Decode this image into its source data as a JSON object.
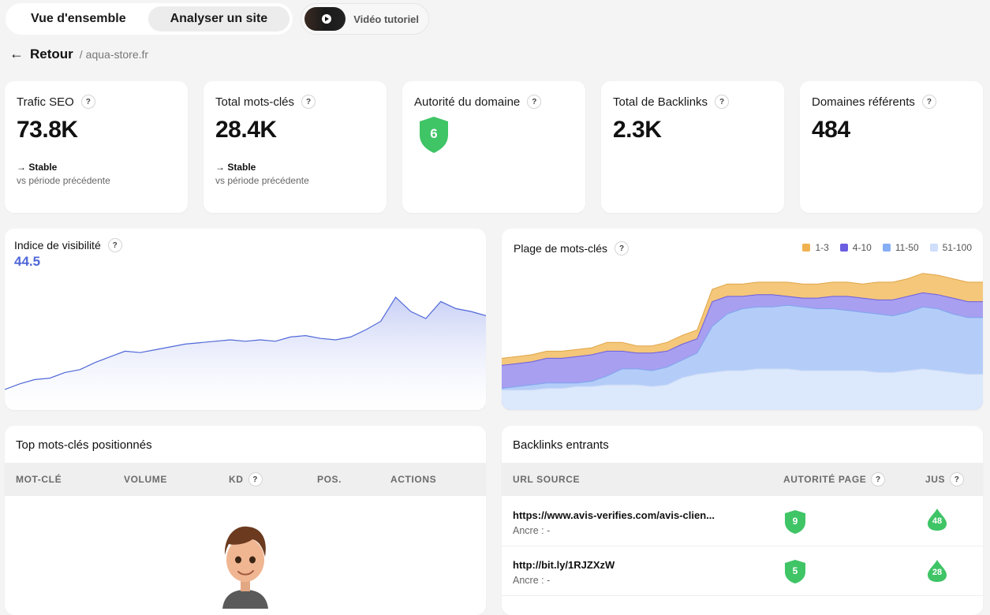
{
  "tabs": {
    "overview": "Vue d'ensemble",
    "analyze": "Analyser un site",
    "video": "Vidéo tutoriel"
  },
  "breadcrumb": {
    "back": "Retour",
    "separator": "/",
    "site": "aqua-store.fr"
  },
  "kpis": {
    "traffic": {
      "title": "Trafic SEO",
      "value": "73.8K",
      "trend": "→ Stable",
      "sub": "vs période précédente"
    },
    "keywords": {
      "title": "Total mots-clés",
      "value": "28.4K",
      "trend": "→ Stable",
      "sub": "vs période précédente"
    },
    "authority": {
      "title": "Autorité du domaine",
      "value": "6"
    },
    "backlinks": {
      "title": "Total de Backlinks",
      "value": "2.3K"
    },
    "domains": {
      "title": "Domaines référents",
      "value": "484"
    }
  },
  "help_glyph": "?",
  "visibility": {
    "title": "Indice de visibilité",
    "value": "44.5"
  },
  "kw_range": {
    "title": "Plage de mots-clés"
  },
  "top_keywords": {
    "title": "Top mots-clés positionnés",
    "columns": [
      "MOT-CLÉ",
      "VOLUME",
      "KD",
      "POS.",
      "ACTIONS"
    ]
  },
  "backlinks_table": {
    "title": "Backlinks entrants",
    "columns": [
      "URL SOURCE",
      "AUTORITÉ PAGE",
      "JUS"
    ],
    "rows": [
      {
        "url": "https://www.avis-verifies.com/avis-clien...",
        "anchor": "Ancre : -",
        "authority": "9",
        "juice": "48"
      },
      {
        "url": "http://bit.ly/1RJZXzW",
        "anchor": "Ancre : -",
        "authority": "5",
        "juice": "28"
      }
    ]
  },
  "colors": {
    "accent": "#5068d8",
    "green": "#3fc466",
    "orange": "#f0b24f",
    "purple": "#8c85ea",
    "blue": "#9bbcf7",
    "lightblue": "#d4e2fb"
  },
  "chart_data": [
    {
      "type": "area",
      "series": [
        {
          "values": [
            10,
            14,
            17,
            18,
            22,
            24,
            29,
            33,
            37,
            36,
            38,
            40,
            42,
            43,
            44,
            45,
            44,
            45,
            44,
            47,
            48,
            46,
            45,
            47,
            52,
            58,
            75,
            65,
            60,
            72,
            67,
            65,
            62
          ]
        }
      ],
      "legend": "none",
      "grid": false
    },
    {
      "type": "area",
      "series": [
        {
          "name": "1-3",
          "values": [
            27,
            28,
            29,
            31,
            31,
            32,
            33,
            36,
            36,
            34,
            34,
            36,
            40,
            43,
            66,
            69,
            69,
            70,
            70,
            70,
            69,
            69,
            70,
            70,
            69,
            70,
            70,
            72,
            75,
            74,
            72,
            70,
            70
          ]
        },
        {
          "name": "4-10",
          "values": [
            23,
            24,
            25,
            27,
            27,
            28,
            29,
            31,
            31,
            30,
            30,
            31,
            35,
            38,
            59,
            62,
            62,
            63,
            63,
            62,
            61,
            61,
            62,
            62,
            61,
            60,
            60,
            62,
            64,
            63,
            61,
            59,
            59
          ]
        },
        {
          "name": "11-50",
          "values": [
            10,
            11,
            12,
            13,
            13,
            13,
            14,
            17,
            21,
            21,
            20,
            22,
            26,
            30,
            45,
            52,
            55,
            56,
            56,
            57,
            56,
            55,
            55,
            54,
            53,
            52,
            51,
            53,
            56,
            55,
            52,
            50,
            50
          ]
        },
        {
          "name": "51-100",
          "values": [
            9,
            9,
            9,
            10,
            10,
            11,
            11,
            12,
            12,
            12,
            11,
            12,
            16,
            18,
            19,
            20,
            20,
            21,
            21,
            21,
            20,
            20,
            20,
            20,
            20,
            19,
            19,
            20,
            21,
            20,
            19,
            18,
            18
          ]
        }
      ],
      "legend": "top-right",
      "grid": false
    }
  ]
}
